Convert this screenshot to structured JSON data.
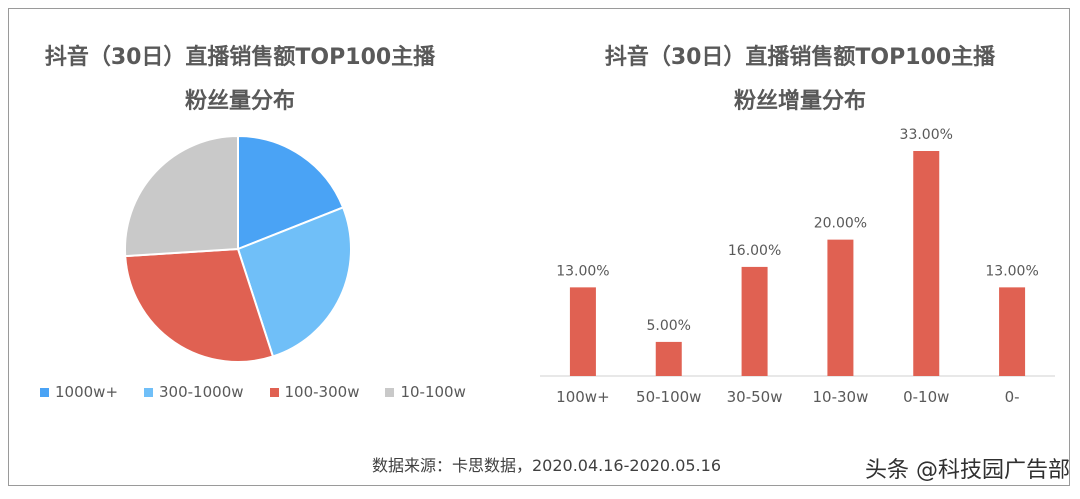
{
  "pie_title": {
    "line1": "抖音（30日）直播销售额TOP100主播",
    "line2": "粉丝量分布"
  },
  "bar_title": {
    "line1": "抖音（30日）直播销售额TOP100主播",
    "line2": "粉丝增量分布"
  },
  "source": "数据来源：卡思数据，2020.04.16-2020.05.16",
  "watermark": "头条 @科技园广告部",
  "chart_data": [
    {
      "type": "pie",
      "title": "抖音（30日）直播销售额TOP100主播粉丝量分布",
      "legend_position": "bottom",
      "slices": [
        {
          "label": "1000w+",
          "value": 19,
          "color": "#4aa3f5"
        },
        {
          "label": "300-1000w",
          "value": 26,
          "color": "#70bff8"
        },
        {
          "label": "100-300w",
          "value": 29,
          "color": "#e06152"
        },
        {
          "label": "10-100w",
          "value": 26,
          "color": "#c9c9c9"
        }
      ]
    },
    {
      "type": "bar",
      "title": "抖音（30日）直播销售额TOP100主播粉丝增量分布",
      "categories": [
        "100w+",
        "50-100w",
        "30-50w",
        "10-30w",
        "0-10w",
        "0-"
      ],
      "values": [
        13,
        5,
        16,
        20,
        33,
        13
      ],
      "data_labels": [
        "13.00%",
        "5.00%",
        "16.00%",
        "20.00%",
        "33.00%",
        "13.00%"
      ],
      "ylim": [
        0,
        33
      ],
      "grid": false,
      "color": "#e06152"
    }
  ]
}
